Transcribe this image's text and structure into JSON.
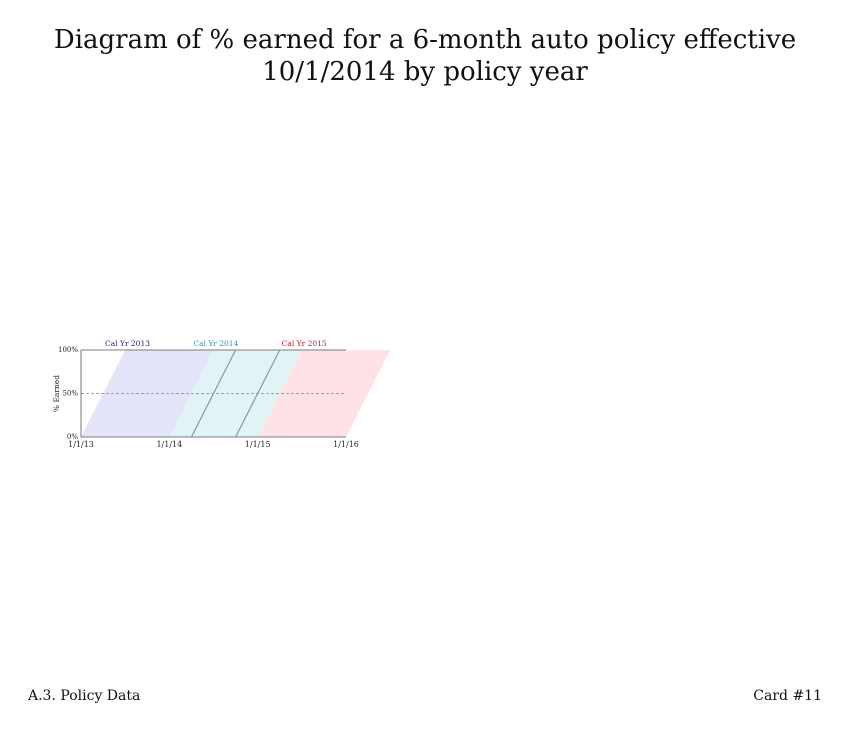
{
  "title": "Diagram of % earned for a 6-month auto policy effective 10/1/2014 by policy year",
  "footer": {
    "left": "A.3. Policy Data",
    "right": "Card #11"
  },
  "colors": {
    "cal_2013": "#1a1a8c",
    "cal_2014": "#2a9aa8",
    "cal_2015": "#c8102e",
    "band_2013": "#e4e4fa",
    "band_2014": "#e0f3f5",
    "band_2015": "#fde3e6",
    "axis": "#555555",
    "policy_line": "#8a9a9a"
  },
  "chart_data": {
    "type": "area",
    "title": "Diagram of % earned for a 6-month auto policy effective 10/1/2014 by policy year",
    "xlabel": "",
    "ylabel": "% Earned",
    "xlim": [
      2013.0,
      2016.0
    ],
    "ylim": [
      0,
      100
    ],
    "x_ticks": [
      {
        "value": 2013.0,
        "label": "1/1/13"
      },
      {
        "value": 2014.0,
        "label": "1/1/14"
      },
      {
        "value": 2015.0,
        "label": "1/1/15"
      },
      {
        "value": 2016.0,
        "label": "1/1/16"
      }
    ],
    "y_ticks": [
      {
        "value": 0,
        "label": "0%"
      },
      {
        "value": 50,
        "label": "50%"
      },
      {
        "value": 100,
        "label": "100%"
      }
    ],
    "reference_line": {
      "y": 50,
      "style": "dashed"
    },
    "bands": [
      {
        "name": "Cal Yr 2013",
        "color_key": "cal_2013",
        "fill_key": "band_2013",
        "start": 2013.0,
        "end": 2014.0,
        "term_years": 0.5
      },
      {
        "name": "Cal Yr 2014",
        "color_key": "cal_2014",
        "fill_key": "band_2014",
        "start": 2014.0,
        "end": 2015.0,
        "term_years": 0.5
      },
      {
        "name": "Cal Yr 2015",
        "color_key": "cal_2015",
        "fill_key": "band_2015",
        "start": 2015.0,
        "end": 2016.0,
        "term_years": 0.5
      }
    ],
    "policy": {
      "effective": 2014.75,
      "term_years": 0.5,
      "earned_start": 0,
      "earned_end": 100
    }
  }
}
